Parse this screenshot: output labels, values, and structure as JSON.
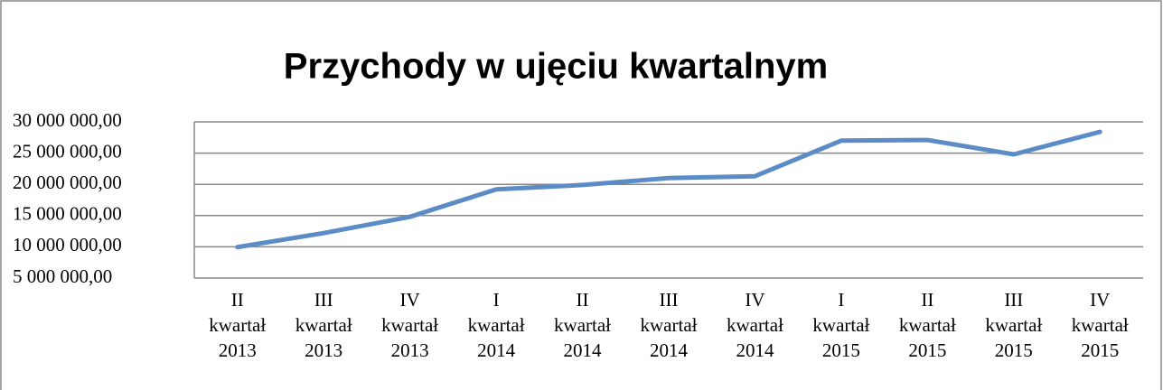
{
  "chart_data": {
    "type": "line",
    "title": "Przychody w ujęciu kwartalnym",
    "categories": [
      "II kwartał 2013",
      "III kwartał 2013",
      "IV kwartał 2013",
      "I kwartał 2014",
      "II kwartał 2014",
      "III kwartał 2014",
      "IV kwartał 2014",
      "I kwartał 2015",
      "II kwartał 2015",
      "III kwartał 2015",
      "IV kwartał 2015"
    ],
    "series": [
      {
        "name": "Przychody",
        "color": "#5b8cc6",
        "values": [
          9950000,
          12200000,
          14800000,
          19200000,
          19900000,
          21000000,
          21300000,
          27000000,
          27100000,
          24800000,
          28400000
        ]
      }
    ],
    "ylim": [
      5000000,
      30000000
    ],
    "yticks": [
      {
        "value": 5000000,
        "label": "5 000 000,00"
      },
      {
        "value": 10000000,
        "label": "10 000 000,00"
      },
      {
        "value": 15000000,
        "label": "15 000 000,00"
      },
      {
        "value": 20000000,
        "label": "20 000 000,00"
      },
      {
        "value": 25000000,
        "label": "25 000 000,00"
      },
      {
        "value": 30000000,
        "label": "30 000 000,00"
      }
    ],
    "grid": true
  }
}
